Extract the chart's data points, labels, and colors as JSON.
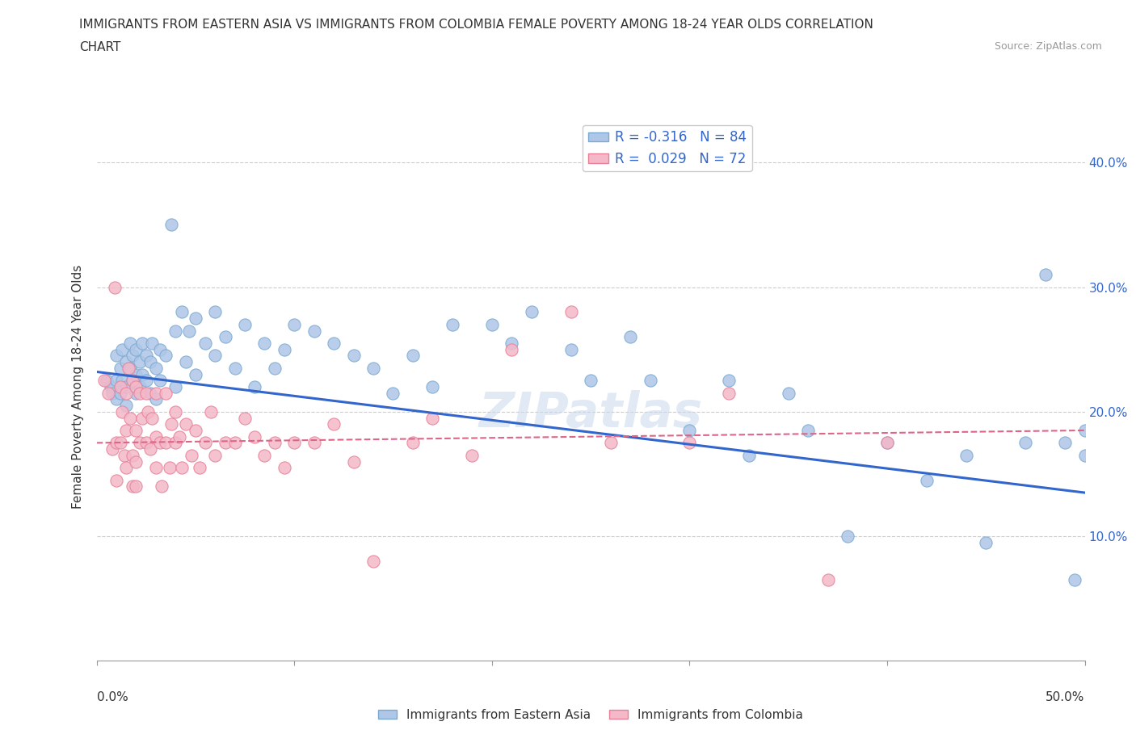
{
  "title_line1": "IMMIGRANTS FROM EASTERN ASIA VS IMMIGRANTS FROM COLOMBIA FEMALE POVERTY AMONG 18-24 YEAR OLDS CORRELATION",
  "title_line2": "CHART",
  "source_text": "Source: ZipAtlas.com",
  "ylabel": "Female Poverty Among 18-24 Year Olds",
  "xlim": [
    0,
    0.5
  ],
  "ylim": [
    0,
    0.44
  ],
  "xticks": [
    0.0,
    0.1,
    0.2,
    0.3,
    0.4,
    0.5
  ],
  "yticks": [
    0.1,
    0.2,
    0.3,
    0.4
  ],
  "xtick_labels_outer": [
    "0.0%",
    "50.0%"
  ],
  "ytick_labels_right": [
    "10.0%",
    "20.0%",
    "30.0%",
    "40.0%"
  ],
  "blue_color": "#aec6e8",
  "blue_edge_color": "#7aaad0",
  "pink_color": "#f4b8c8",
  "pink_edge_color": "#e88098",
  "blue_line_color": "#3366cc",
  "pink_line_color": "#dd6688",
  "grid_color": "#cccccc",
  "R_blue": -0.316,
  "N_blue": 84,
  "R_pink": 0.029,
  "N_pink": 72,
  "legend_label_blue": "Immigrants from Eastern Asia",
  "legend_label_pink": "Immigrants from Colombia",
  "watermark": "ZIPatlas",
  "blue_scatter_x": [
    0.005,
    0.007,
    0.008,
    0.01,
    0.01,
    0.01,
    0.012,
    0.012,
    0.013,
    0.013,
    0.015,
    0.015,
    0.015,
    0.017,
    0.017,
    0.018,
    0.018,
    0.02,
    0.02,
    0.02,
    0.022,
    0.022,
    0.023,
    0.023,
    0.025,
    0.025,
    0.027,
    0.027,
    0.028,
    0.03,
    0.03,
    0.032,
    0.032,
    0.035,
    0.038,
    0.04,
    0.04,
    0.043,
    0.045,
    0.047,
    0.05,
    0.05,
    0.055,
    0.06,
    0.06,
    0.065,
    0.07,
    0.075,
    0.08,
    0.085,
    0.09,
    0.095,
    0.1,
    0.11,
    0.12,
    0.13,
    0.14,
    0.15,
    0.16,
    0.17,
    0.18,
    0.2,
    0.21,
    0.22,
    0.24,
    0.25,
    0.27,
    0.28,
    0.3,
    0.32,
    0.33,
    0.35,
    0.36,
    0.38,
    0.4,
    0.42,
    0.44,
    0.45,
    0.47,
    0.48,
    0.49,
    0.495,
    0.5,
    0.5
  ],
  "blue_scatter_y": [
    0.225,
    0.22,
    0.215,
    0.245,
    0.225,
    0.21,
    0.235,
    0.215,
    0.25,
    0.225,
    0.24,
    0.22,
    0.205,
    0.255,
    0.235,
    0.245,
    0.225,
    0.25,
    0.23,
    0.215,
    0.24,
    0.22,
    0.255,
    0.23,
    0.245,
    0.225,
    0.24,
    0.215,
    0.255,
    0.235,
    0.21,
    0.25,
    0.225,
    0.245,
    0.35,
    0.265,
    0.22,
    0.28,
    0.24,
    0.265,
    0.275,
    0.23,
    0.255,
    0.28,
    0.245,
    0.26,
    0.235,
    0.27,
    0.22,
    0.255,
    0.235,
    0.25,
    0.27,
    0.265,
    0.255,
    0.245,
    0.235,
    0.215,
    0.245,
    0.22,
    0.27,
    0.27,
    0.255,
    0.28,
    0.25,
    0.225,
    0.26,
    0.225,
    0.185,
    0.225,
    0.165,
    0.215,
    0.185,
    0.1,
    0.175,
    0.145,
    0.165,
    0.095,
    0.175,
    0.31,
    0.175,
    0.065,
    0.185,
    0.165
  ],
  "pink_scatter_x": [
    0.004,
    0.006,
    0.008,
    0.009,
    0.01,
    0.01,
    0.012,
    0.012,
    0.013,
    0.014,
    0.015,
    0.015,
    0.015,
    0.016,
    0.017,
    0.018,
    0.018,
    0.018,
    0.02,
    0.02,
    0.02,
    0.02,
    0.022,
    0.022,
    0.023,
    0.025,
    0.025,
    0.026,
    0.027,
    0.028,
    0.03,
    0.03,
    0.03,
    0.032,
    0.033,
    0.035,
    0.035,
    0.037,
    0.038,
    0.04,
    0.04,
    0.042,
    0.043,
    0.045,
    0.048,
    0.05,
    0.052,
    0.055,
    0.058,
    0.06,
    0.065,
    0.07,
    0.075,
    0.08,
    0.085,
    0.09,
    0.095,
    0.1,
    0.11,
    0.12,
    0.13,
    0.14,
    0.16,
    0.17,
    0.19,
    0.21,
    0.24,
    0.26,
    0.3,
    0.32,
    0.37,
    0.4
  ],
  "pink_scatter_y": [
    0.225,
    0.215,
    0.17,
    0.3,
    0.175,
    0.145,
    0.22,
    0.175,
    0.2,
    0.165,
    0.215,
    0.185,
    0.155,
    0.235,
    0.195,
    0.225,
    0.165,
    0.14,
    0.22,
    0.185,
    0.16,
    0.14,
    0.215,
    0.175,
    0.195,
    0.215,
    0.175,
    0.2,
    0.17,
    0.195,
    0.215,
    0.18,
    0.155,
    0.175,
    0.14,
    0.215,
    0.175,
    0.155,
    0.19,
    0.2,
    0.175,
    0.18,
    0.155,
    0.19,
    0.165,
    0.185,
    0.155,
    0.175,
    0.2,
    0.165,
    0.175,
    0.175,
    0.195,
    0.18,
    0.165,
    0.175,
    0.155,
    0.175,
    0.175,
    0.19,
    0.16,
    0.08,
    0.175,
    0.195,
    0.165,
    0.25,
    0.28,
    0.175,
    0.175,
    0.215,
    0.065,
    0.175
  ],
  "blue_trend_x": [
    0.0,
    0.5
  ],
  "blue_trend_y": [
    0.232,
    0.135
  ],
  "pink_trend_x": [
    0.0,
    0.5
  ],
  "pink_trend_y": [
    0.175,
    0.185
  ]
}
